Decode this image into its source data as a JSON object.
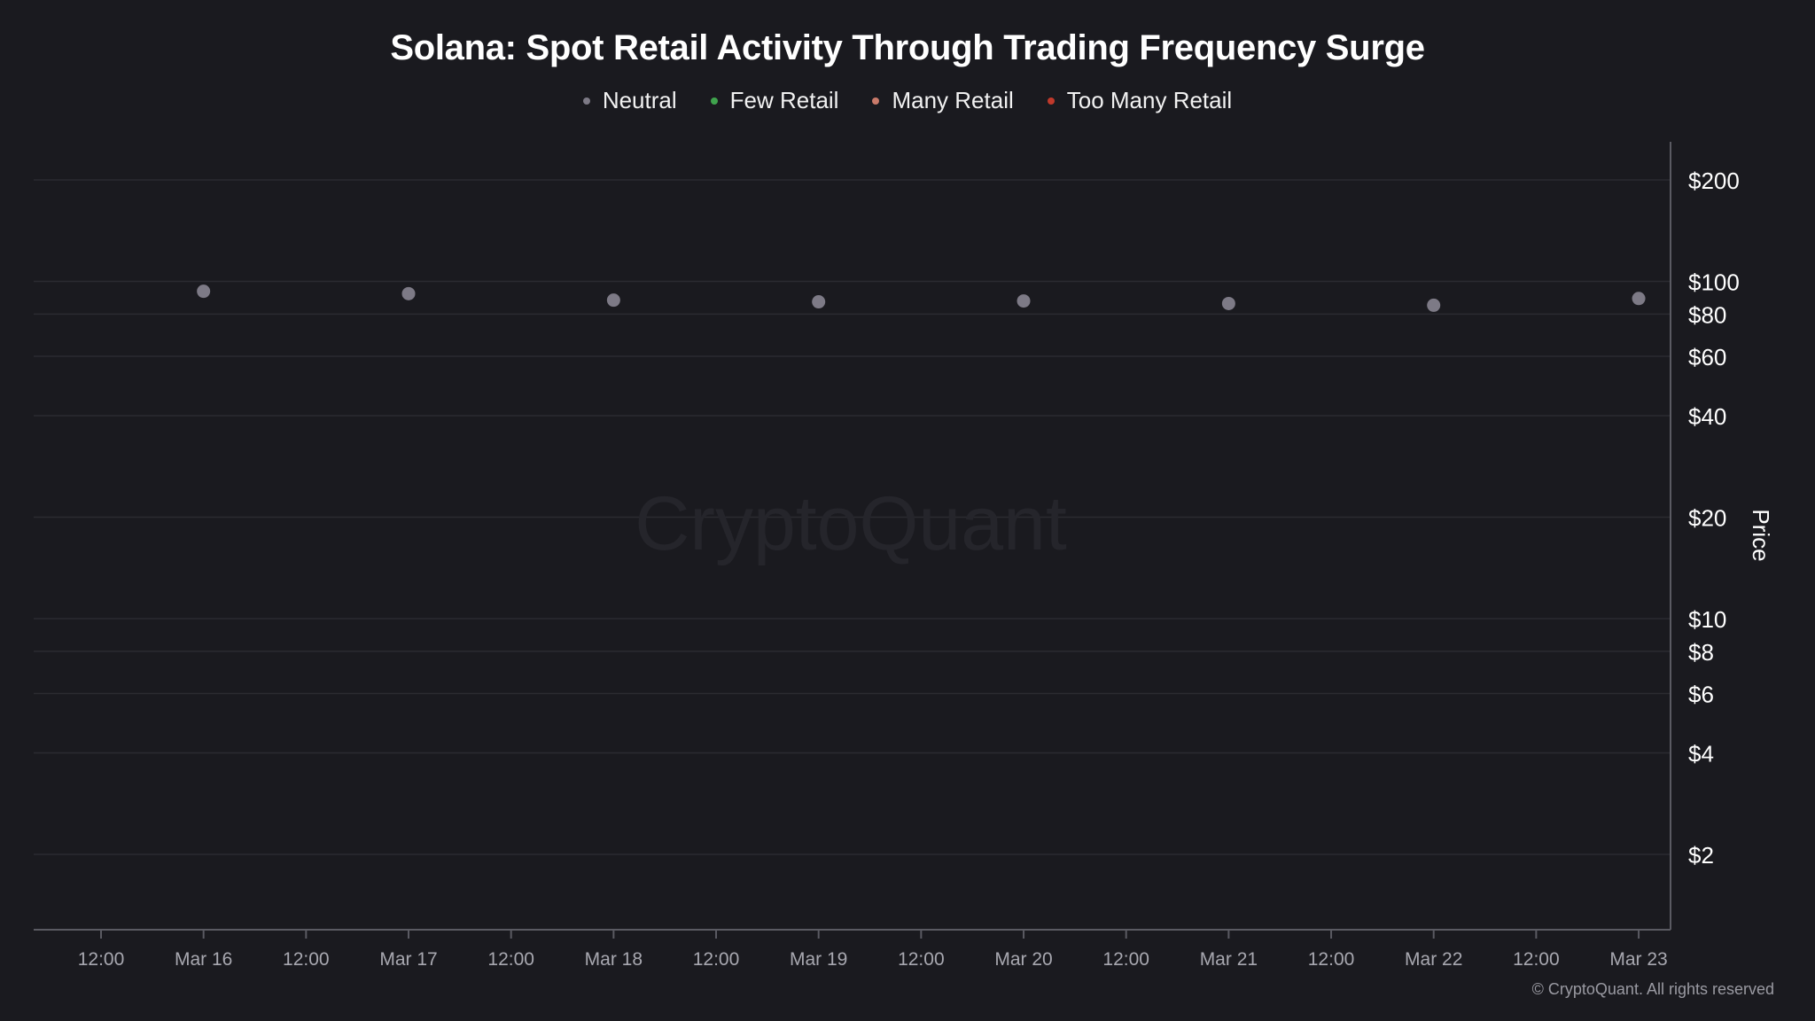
{
  "chart_data": {
    "type": "scatter",
    "title": "Solana: Spot Retail Activity Through Trading Frequency Surge",
    "legend": [
      {
        "name": "Neutral",
        "color": "#7d7a86"
      },
      {
        "name": "Few Retail",
        "color": "#3fa34d"
      },
      {
        "name": "Many Retail",
        "color": "#c97a6a"
      },
      {
        "name": "Too Many Retail",
        "color": "#c0392b"
      }
    ],
    "y_axis": {
      "label": "Price",
      "scale": "log",
      "position": "right",
      "ticks": [
        {
          "value": 200,
          "label": "$200"
        },
        {
          "value": 100,
          "label": "$100"
        },
        {
          "value": 80,
          "label": "$80"
        },
        {
          "value": 60,
          "label": "$60"
        },
        {
          "value": 40,
          "label": "$40"
        },
        {
          "value": 20,
          "label": "$20"
        },
        {
          "value": 10,
          "label": "$10"
        },
        {
          "value": 8,
          "label": "$8"
        },
        {
          "value": 6,
          "label": "$6"
        },
        {
          "value": 4,
          "label": "$4"
        },
        {
          "value": 2,
          "label": "$2"
        }
      ]
    },
    "x_axis": {
      "ticks": [
        "12:00",
        "Mar 16",
        "12:00",
        "Mar 17",
        "12:00",
        "Mar 18",
        "12:00",
        "Mar 19",
        "12:00",
        "Mar 20",
        "12:00",
        "Mar 21",
        "12:00",
        "Mar 22",
        "12:00",
        "Mar 23"
      ]
    },
    "grid": true,
    "series": [
      {
        "name": "Neutral",
        "x": [
          "Mar 16",
          "Mar 17",
          "Mar 18",
          "Mar 19",
          "Mar 20",
          "Mar 21",
          "Mar 22",
          "Mar 23"
        ],
        "values": [
          93.5,
          92.0,
          88.0,
          87.0,
          87.5,
          86.0,
          85.0,
          89.0
        ]
      }
    ]
  },
  "watermark": "CryptoQuant",
  "copyright": "© CryptoQuant. All rights reserved"
}
